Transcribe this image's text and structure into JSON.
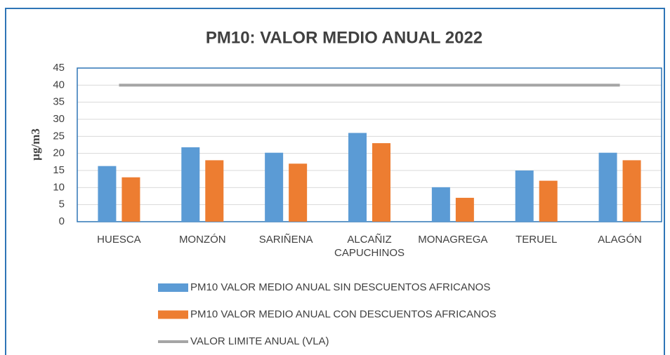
{
  "chart_data": {
    "type": "bar",
    "title": "PM10: VALOR MEDIO ANUAL 2022",
    "y_label": "µg/m3",
    "categories": [
      "HUESCA",
      "MONZÓN",
      "SARIÑENA",
      "ALCAÑIZ CAPUCHINOS",
      "MONAGREGA",
      "TERUEL",
      "ALAGÓN"
    ],
    "series": [
      {
        "name": "PM10 VALOR MEDIO ANUAL SIN DESCUENTOS AFRICANOS",
        "type": "bar",
        "color": "#5b9bd5",
        "values": [
          16.3,
          21.8,
          20.2,
          26,
          10.1,
          15,
          20.2
        ]
      },
      {
        "name": "PM10 VALOR MEDIO ANUAL CON DESCUENTOS AFRICANOS",
        "type": "bar",
        "color": "#ed7d31",
        "values": [
          13,
          18,
          17,
          23,
          7,
          12,
          18
        ]
      },
      {
        "name": "VALOR LIMITE ANUAL (VLA)",
        "type": "line",
        "color": "#a5a5a5",
        "values": [
          40,
          40,
          40,
          40,
          40,
          40,
          40
        ]
      }
    ],
    "ylim": [
      0,
      45
    ],
    "yticks": [
      0,
      5,
      10,
      15,
      20,
      25,
      30,
      35,
      40,
      45
    ],
    "grid": true,
    "legend": "bottom"
  }
}
